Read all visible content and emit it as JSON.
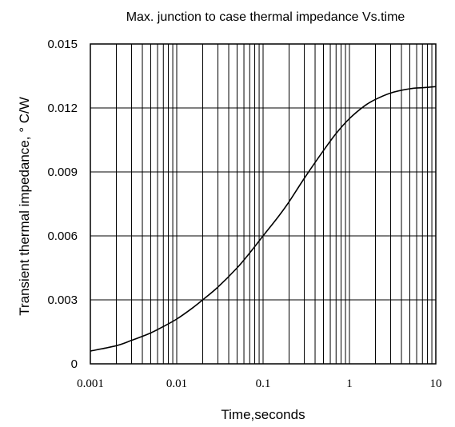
{
  "chart_data": {
    "type": "line",
    "title": "Max. junction to case thermal impedance Vs.time",
    "xlabel": "Time,seconds",
    "ylabel": "Transient thermal impedance, ° C/W",
    "x_scale": "log",
    "xlim": [
      0.001,
      10
    ],
    "ylim": [
      0,
      0.015
    ],
    "x_ticks": [
      0.001,
      0.01,
      0.1,
      1,
      10
    ],
    "x_tick_labels": [
      "0.001",
      "0.01",
      "0.1",
      "1",
      "10"
    ],
    "y_ticks": [
      0,
      0.003,
      0.006,
      0.009,
      0.012,
      0.015
    ],
    "y_tick_labels": [
      "0",
      "0.003",
      "0.006",
      "0.009",
      "0.012",
      "0.015"
    ],
    "grid": true,
    "legend": "none",
    "series": [
      {
        "x": [
          0.001,
          0.002,
          0.003,
          0.005,
          0.007,
          0.01,
          0.015,
          0.02,
          0.03,
          0.05,
          0.07,
          0.1,
          0.15,
          0.2,
          0.3,
          0.5,
          0.7,
          1,
          1.5,
          2,
          3,
          5,
          7,
          10
        ],
        "y": [
          0.0006,
          0.00085,
          0.0011,
          0.00145,
          0.00175,
          0.0021,
          0.0026,
          0.003,
          0.0036,
          0.0045,
          0.0052,
          0.006,
          0.0069,
          0.0076,
          0.0087,
          0.01,
          0.0108,
          0.0115,
          0.0121,
          0.0124,
          0.0127,
          0.0129,
          0.01295,
          0.013
        ]
      }
    ],
    "line_color": "#000000"
  }
}
